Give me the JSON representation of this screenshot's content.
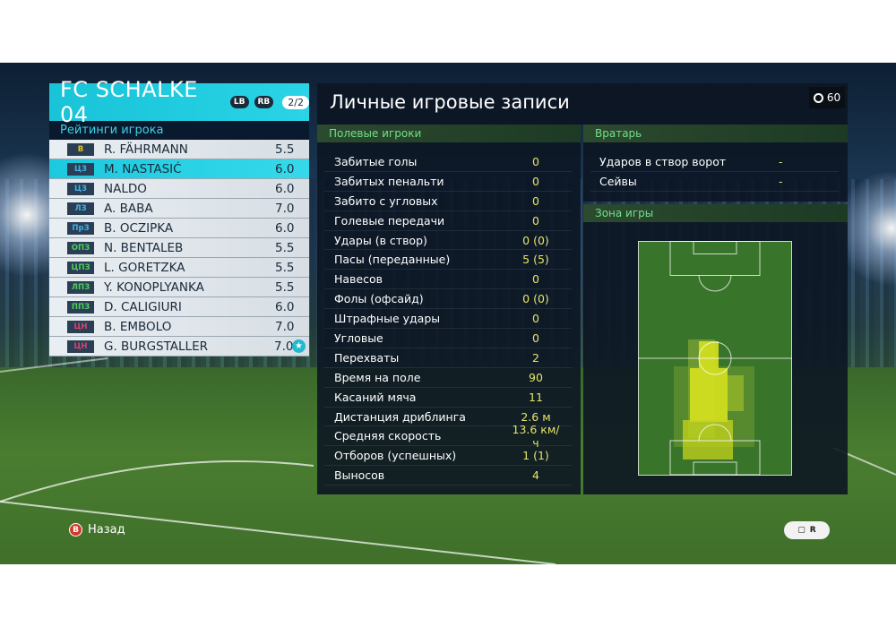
{
  "team": {
    "name": "FC SCHALKE 04",
    "chip_left": "LB",
    "chip_right": "RB",
    "page": "2/2",
    "ratings_title": "Рейтинги игрока",
    "players": [
      {
        "pos": "В",
        "pos_color": "#e8c21a",
        "name": "R. FÄHRMANN",
        "rating": "5.5"
      },
      {
        "pos": "ЦЗ",
        "pos_color": "#3fb3e6",
        "name": "M. NASTASIĆ",
        "rating": "6.0",
        "selected": true
      },
      {
        "pos": "ЦЗ",
        "pos_color": "#3fb3e6",
        "name": "NALDO",
        "rating": "6.0"
      },
      {
        "pos": "ЛЗ",
        "pos_color": "#3fb3e6",
        "name": "A. BABA",
        "rating": "7.0"
      },
      {
        "pos": "ПрЗ",
        "pos_color": "#3fb3e6",
        "name": "B. OCZIPKA",
        "rating": "6.0"
      },
      {
        "pos": "ОПЗ",
        "pos_color": "#4fd05a",
        "name": "N. BENTALEB",
        "rating": "5.5"
      },
      {
        "pos": "ЦПЗ",
        "pos_color": "#4fd05a",
        "name": "L. GORETZKA",
        "rating": "5.5"
      },
      {
        "pos": "ЛПЗ",
        "pos_color": "#4fd05a",
        "name": "Y. KONOPLYANKA",
        "rating": "5.5"
      },
      {
        "pos": "ППЗ",
        "pos_color": "#4fd05a",
        "name": "D. CALIGIURI",
        "rating": "6.0"
      },
      {
        "pos": "ЦН",
        "pos_color": "#e0406a",
        "name": "B. EMBOLO",
        "rating": "7.0"
      },
      {
        "pos": "ЦН",
        "pos_color": "#e0406a",
        "name": "G. BURGSTALLER",
        "rating": "7.0",
        "star": "★"
      }
    ]
  },
  "main": {
    "title": "Личные игровые записи",
    "timer": "60",
    "field_head": "Полевые игроки",
    "stats": [
      {
        "label": "Забитые голы",
        "value": "0"
      },
      {
        "label": "Забитых пенальти",
        "value": "0"
      },
      {
        "label": "Забито с угловых",
        "value": "0"
      },
      {
        "label": "Голевые передачи",
        "value": "0"
      },
      {
        "label": "Удары (в створ)",
        "value": "0 (0)"
      },
      {
        "label": "Пасы (переданные)",
        "value": "5 (5)"
      },
      {
        "label": "Навесов",
        "value": "0"
      },
      {
        "label": "Фолы (офсайд)",
        "value": "0 (0)"
      },
      {
        "label": "Штрафные удары",
        "value": "0"
      },
      {
        "label": "Угловые",
        "value": "0"
      },
      {
        "label": "Перехваты",
        "value": "2"
      },
      {
        "label": "Время на поле",
        "value": "90"
      },
      {
        "label": "Касаний мяча",
        "value": "11"
      },
      {
        "label": "Дистанция дриблинга",
        "value": "2.6 м"
      },
      {
        "label": "Средняя скорость",
        "value": "13.6 км/ч"
      },
      {
        "label": "Отборов (успешных)",
        "value": "1 (1)"
      },
      {
        "label": "Выносов",
        "value": "4"
      }
    ],
    "gk_head": "Вратарь",
    "gk_stats": [
      {
        "label": "Ударов в створ ворот",
        "value": "-"
      },
      {
        "label": "Сейвы",
        "value": "-"
      }
    ],
    "zone_head": "Зона игры"
  },
  "hints": {
    "back_button": "B",
    "back_label": "Назад",
    "right_icons": "chat-icon, r-stick-icon"
  }
}
